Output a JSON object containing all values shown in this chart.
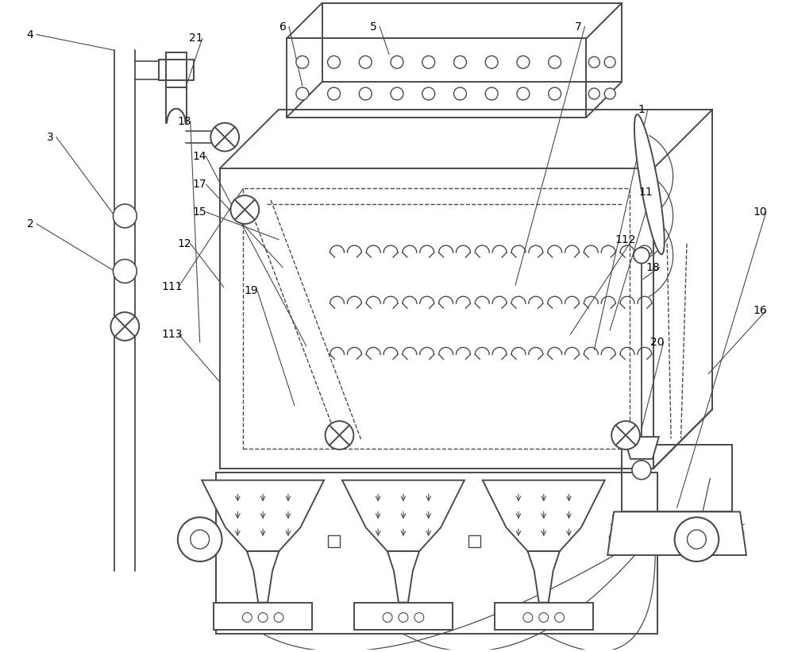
{
  "bg_color": "#ffffff",
  "lc": "#4a4a4a",
  "lw": 1.4
}
